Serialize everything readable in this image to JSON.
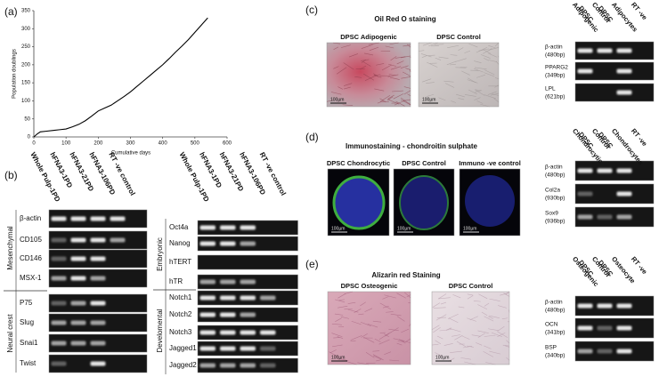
{
  "chart_data": {
    "type": "line",
    "label": "(a)",
    "x_label": "Cumulative days",
    "y_label": "Population doublings",
    "xlim": [
      0,
      600
    ],
    "xticks": [
      0,
      100,
      200,
      300,
      400,
      500,
      600
    ],
    "ylim": [
      0,
      350
    ],
    "yticks": [
      0,
      50,
      100,
      150,
      200,
      250,
      300,
      350
    ],
    "series": [
      {
        "color": "#000000",
        "x": [
          0,
          10,
          20,
          40,
          60,
          80,
          100,
          120,
          140,
          160,
          180,
          200,
          220,
          240,
          260,
          280,
          300,
          320,
          340,
          360,
          380,
          400,
          420,
          440,
          460,
          480,
          500,
          520,
          540
        ],
        "values": [
          0,
          8,
          14,
          16,
          18,
          20,
          22,
          28,
          35,
          45,
          58,
          72,
          80,
          88,
          100,
          112,
          125,
          140,
          155,
          170,
          185,
          200,
          217,
          235,
          252,
          270,
          290,
          310,
          330
        ]
      }
    ]
  },
  "panels": {
    "b": {
      "label": "(b)",
      "gels": [
        {
          "columns": [
            "Whole Pulp-1PD",
            "hFNA3-1PD",
            "hFNA3-21PD",
            "hFNA3-106PD",
            "RT -ve control"
          ],
          "rows": [
            "β-actin",
            "CD105",
            "CD146",
            "MSX-1",
            "P75",
            "Slug",
            "Snai1",
            "Twist"
          ],
          "groups": [
            "Mesenchymal",
            "Neural crest"
          ]
        },
        {
          "columns": [
            "Whole Pulp-1PD",
            "hFNA3-1PD",
            "hFNA3-21PD",
            "hFNA3-106PD",
            "RT -ve control"
          ],
          "rows": [
            "Oct4a",
            "Nanog",
            "hTERT",
            "hTR",
            "Notch1",
            "Notch2",
            "Notch3",
            "Jagged1",
            "Jagged2"
          ],
          "groups": [
            "Embryonic",
            "Develomental"
          ]
        }
      ]
    },
    "c": {
      "label": "(c)",
      "title": "Oil Red O staining",
      "images": [
        "DPSC Adipogenic",
        "DPSC Control"
      ],
      "scale": "100µm",
      "columns": [
        [
          "Adipogenic",
          "DPSC"
        ],
        [
          "Control",
          "DPSC"
        ],
        [
          "Adipocytes"
        ],
        [
          "RT -ve"
        ]
      ],
      "rows": [
        [
          "β-actin",
          "(480bp)"
        ],
        [
          "PPARG2",
          "(349bp)"
        ],
        [
          "LPL",
          "(621bp)"
        ]
      ]
    },
    "d": {
      "label": "(d)",
      "title": "Immunostaining - chondroitin sulphate",
      "images": [
        "DPSC Chondrocytic",
        "DPSC Control",
        "Immuno -ve control"
      ],
      "scale": "100µm",
      "columns": [
        [
          "Chondrocytic",
          "DPSC"
        ],
        [
          "Control",
          "DPSC"
        ],
        [
          "Chondrocytes"
        ],
        [
          "RT -ve"
        ]
      ],
      "rows": [
        [
          "β-actin",
          "(480bp)"
        ],
        [
          "Col2a",
          "(930bp)"
        ],
        [
          "Sox9",
          "(936bp)"
        ]
      ]
    },
    "e": {
      "label": "(e)",
      "title": "Alizarin red Staining",
      "images": [
        "DPSC Osteogenic",
        "DPSC Control"
      ],
      "scale": "100µm",
      "columns": [
        [
          "Osteogenic",
          "DPSC"
        ],
        [
          "Control",
          "DPSC"
        ],
        [
          "Osteocyte"
        ],
        [
          "RT -ve"
        ]
      ],
      "rows": [
        [
          "β-actin",
          "(480bp)"
        ],
        [
          "OCN",
          "(341bp)"
        ],
        [
          "BSP",
          "(340bp)"
        ]
      ]
    }
  }
}
